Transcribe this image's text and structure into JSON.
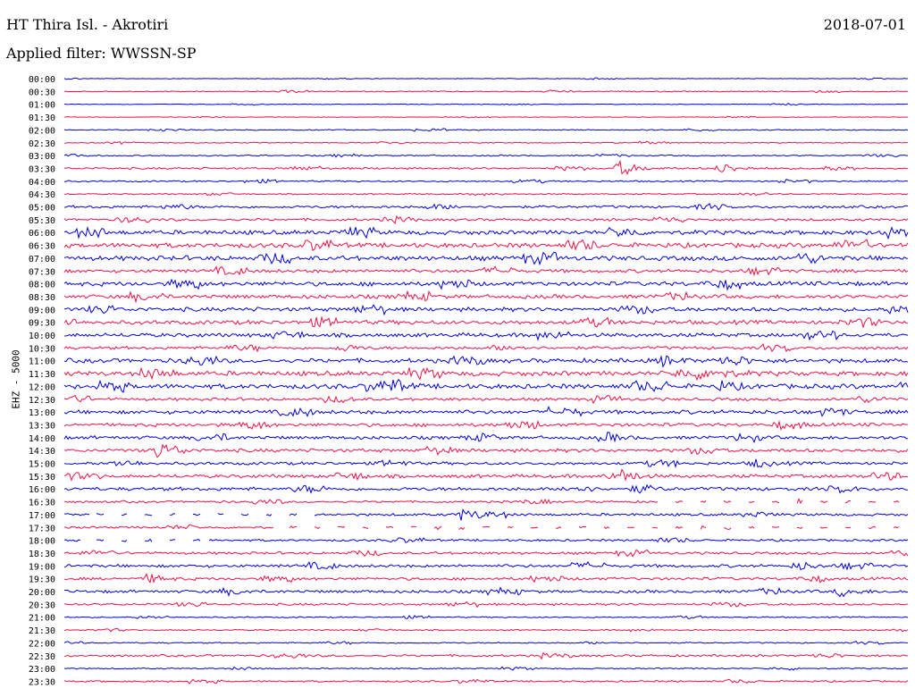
{
  "header": {
    "station": "HT Thira Isl. - Akrotiri",
    "date": "2018-07-01",
    "filter": "Applied filter: WWSSN-SP",
    "channel": "EHZ - 5000"
  },
  "colors": {
    "odd": "#0000dd",
    "even": "#ee1144"
  },
  "chart_data": {
    "type": "line",
    "title": "HT Thira Isl. - Akrotiri",
    "subtitle": "Applied filter: WWSSN-SP",
    "ylabel": "EHZ - 5000",
    "rows": [
      "00:00",
      "00:30",
      "01:00",
      "01:30",
      "02:00",
      "02:30",
      "03:00",
      "03:30",
      "04:00",
      "04:30",
      "05:00",
      "05:30",
      "06:00",
      "06:30",
      "07:00",
      "07:30",
      "08:00",
      "08:30",
      "09:00",
      "09:30",
      "10:00",
      "10:30",
      "11:00",
      "11:30",
      "12:00",
      "12:30",
      "13:00",
      "13:30",
      "14:00",
      "14:30",
      "15:00",
      "15:30",
      "16:00",
      "16:30",
      "17:00",
      "17:30",
      "18:00",
      "18:30",
      "19:00",
      "19:30",
      "20:00",
      "20:30",
      "21:00",
      "21:30",
      "22:00",
      "22:30",
      "23:00",
      "23:30"
    ],
    "noise_level": [
      0.3,
      0.5,
      0.3,
      0.3,
      0.5,
      0.5,
      0.6,
      0.9,
      0.7,
      0.6,
      1.2,
      1.2,
      2.0,
      2.2,
      2.2,
      1.6,
      2.0,
      1.8,
      1.9,
      1.9,
      1.8,
      1.4,
      2.0,
      2.2,
      2.2,
      1.4,
      1.8,
      1.6,
      1.6,
      1.6,
      1.4,
      1.6,
      1.6,
      1.0,
      1.2,
      1.0,
      1.0,
      1.2,
      1.4,
      1.3,
      1.4,
      1.0,
      0.6,
      0.6,
      0.6,
      1.0,
      0.6,
      0.8
    ],
    "events": [
      {
        "row": 7,
        "pos": 0.66,
        "amp": 9
      },
      {
        "row": 7,
        "pos": 0.78,
        "amp": 6
      },
      {
        "row": 21,
        "pos": 0.33,
        "amp": 4
      },
      {
        "row": 22,
        "pos": 0.71,
        "amp": 5
      },
      {
        "row": 23,
        "pos": 0.77,
        "amp": 6
      },
      {
        "row": 24,
        "pos": 0.39,
        "amp": 5
      },
      {
        "row": 24,
        "pos": 0.78,
        "amp": 5
      },
      {
        "row": 28,
        "pos": 0.64,
        "amp": 6
      },
      {
        "row": 29,
        "pos": 0.11,
        "amp": 6
      },
      {
        "row": 30,
        "pos": 0.82,
        "amp": 5
      },
      {
        "row": 31,
        "pos": 0.66,
        "amp": 5
      },
      {
        "row": 32,
        "pos": 0.68,
        "amp": 5
      },
      {
        "row": 34,
        "pos": 0.47,
        "amp": 6
      },
      {
        "row": 38,
        "pos": 0.87,
        "amp": 5
      },
      {
        "row": 39,
        "pos": 0.1,
        "amp": 5
      },
      {
        "row": 40,
        "pos": 0.92,
        "amp": 5
      }
    ],
    "gaps": [
      {
        "row": 33,
        "from": 0.7,
        "to": 1.0
      },
      {
        "row": 34,
        "from": 0.03,
        "to": 0.3
      },
      {
        "row": 35,
        "from": 0.25,
        "to": 1.0
      },
      {
        "row": 36,
        "from": 0.02,
        "to": 0.17
      }
    ]
  }
}
